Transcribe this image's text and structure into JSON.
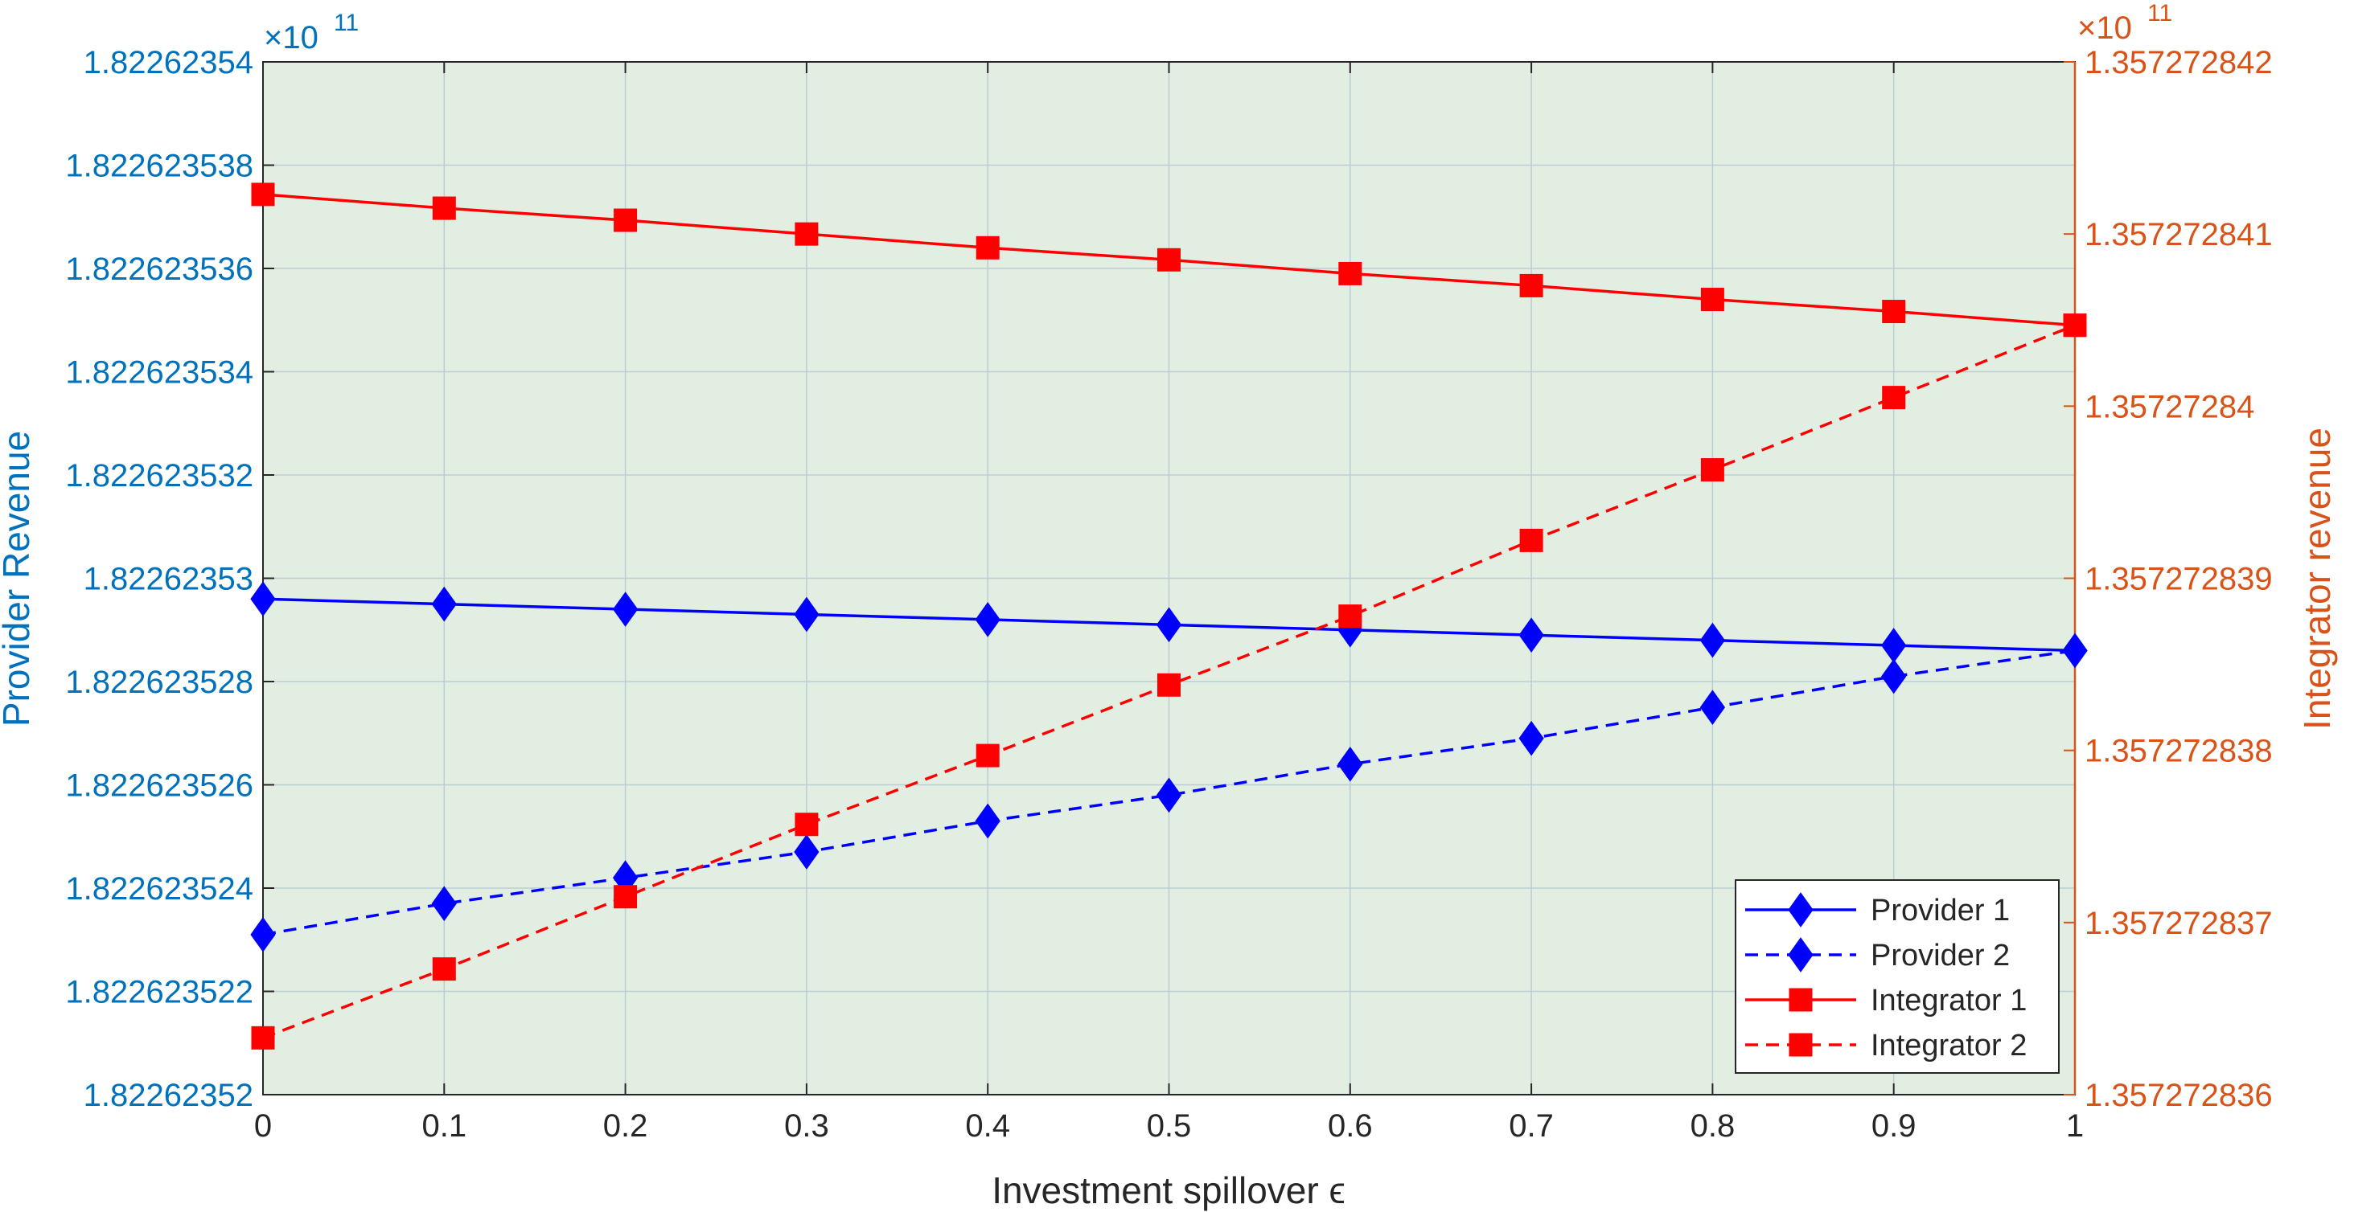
{
  "chart_data": {
    "type": "line",
    "xlabel": "Investment spillover ϵ",
    "x": [
      0,
      0.1,
      0.2,
      0.3,
      0.4,
      0.5,
      0.6,
      0.7,
      0.8,
      0.9,
      1
    ],
    "xlim": [
      0,
      1
    ],
    "x_ticks": [
      0,
      0.1,
      0.2,
      0.3,
      0.4,
      0.5,
      0.6,
      0.7,
      0.8,
      0.9,
      1
    ],
    "x_tick_labels": [
      "0",
      "0.1",
      "0.2",
      "0.3",
      "0.4",
      "0.5",
      "0.6",
      "0.7",
      "0.8",
      "0.9",
      "1"
    ],
    "y_left": {
      "label": "Provider Revenue",
      "exponent_label": "×10",
      "exponent_power": "11",
      "ylim": [
        1.82262352,
        1.82262354
      ],
      "ticks": [
        1.82262352,
        1.822623522,
        1.822623524,
        1.822623526,
        1.822623528,
        1.82262353,
        1.822623532,
        1.822623534,
        1.822623536,
        1.822623538,
        1.82262354
      ],
      "tick_labels": [
        "1.82262352",
        "1.822623522",
        "1.822623524",
        "1.822623526",
        "1.822623528",
        "1.82262353",
        "1.822623532",
        "1.822623534",
        "1.822623536",
        "1.822623538",
        "1.82262354"
      ],
      "color": "#0072BD"
    },
    "y_right": {
      "label": "Integrator revenue",
      "exponent_label": "×10",
      "exponent_power": "11",
      "ylim": [
        1.357272836,
        1.357272842
      ],
      "ticks": [
        1.357272836,
        1.357272837,
        1.357272838,
        1.357272839,
        1.35727284,
        1.357272841,
        1.357272842
      ],
      "tick_labels": [
        "1.357272836",
        "1.357272837",
        "1.357272838",
        "1.357272839",
        "1.35727284",
        "1.357272841",
        "1.357272842"
      ],
      "color": "#D95319"
    },
    "series": [
      {
        "name": "Provider 1",
        "axis": "left",
        "color": "#0000FF",
        "dash": "solid",
        "marker": "diamond",
        "values": [
          1.8226235296,
          1.8226235295,
          1.8226235294,
          1.8226235293,
          1.8226235292,
          1.8226235291,
          1.822623529,
          1.8226235289,
          1.8226235288,
          1.8226235287,
          1.8226235286
        ]
      },
      {
        "name": "Provider 2",
        "axis": "left",
        "color": "#0000FF",
        "dash": "dashed",
        "marker": "diamond",
        "values": [
          1.8226235231,
          1.8226235237,
          1.8226235242,
          1.8226235247,
          1.8226235253,
          1.8226235258,
          1.8226235264,
          1.8226235269,
          1.8226235275,
          1.8226235281,
          1.8226235286
        ]
      },
      {
        "name": "Integrator 1",
        "axis": "right",
        "color": "#FF0000",
        "dash": "solid",
        "marker": "square",
        "values": [
          1.35727284123,
          1.35727284115,
          1.35727284108,
          1.357272841,
          1.35727284092,
          1.35727284085,
          1.35727284077,
          1.3572728407,
          1.35727284062,
          1.35727284055,
          1.35727284047
        ]
      },
      {
        "name": "Integrator 2",
        "axis": "right",
        "color": "#FF0000",
        "dash": "dashed",
        "marker": "square",
        "values": [
          1.35727283633,
          1.35727283673,
          1.35727283715,
          1.35727283757,
          1.35727283797,
          1.35727283838,
          1.35727283878,
          1.35727283922,
          1.35727283963,
          1.35727284005,
          1.35727284047
        ]
      }
    ],
    "grid": true,
    "legend_position": "bottom-right",
    "plot_background": "#E2EEE2",
    "grid_color": "#B9CDD2"
  }
}
